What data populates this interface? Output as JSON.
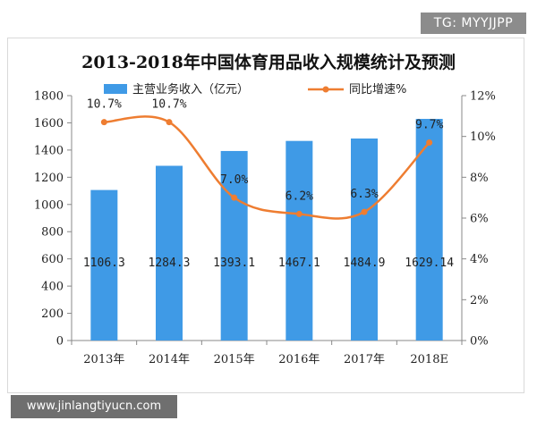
{
  "badge": {
    "text": "TG: MYYJJPP"
  },
  "footer": {
    "url": "www.jinlangtiyucn.com"
  },
  "colors": {
    "bar": "#3f9ae6",
    "line": "#ee7d31",
    "axis": "#888888"
  },
  "chart_data": {
    "type": "bar",
    "title": "2013-2018年中国体育用品收入规模统计及预测",
    "categories": [
      "2013年",
      "2014年",
      "2015年",
      "2016年",
      "2017年",
      "2018E"
    ],
    "series": [
      {
        "name": "主营业务收入（亿元）",
        "type": "bar",
        "axis": "left",
        "values": [
          1106.3,
          1284.3,
          1393.1,
          1467.1,
          1484.9,
          1629.14
        ],
        "labels": [
          "1106.3",
          "1284.3",
          "1393.1",
          "1467.1",
          "1484.9",
          "1629.14"
        ]
      },
      {
        "name": "同比增速%",
        "type": "line",
        "axis": "right",
        "values": [
          10.7,
          10.7,
          7.0,
          6.2,
          6.3,
          9.7
        ],
        "labels": [
          "10.7%",
          "10.7%",
          "7.0%",
          "6.2%",
          "6.3%",
          "9.7%"
        ]
      }
    ],
    "y_left": {
      "min": 0,
      "max": 1800,
      "ticks": [
        "0",
        "200",
        "400",
        "600",
        "800",
        "1000",
        "1200",
        "1400",
        "1600",
        "1800"
      ]
    },
    "y_right": {
      "min": 0,
      "max": 12,
      "ticks": [
        "0%",
        "2%",
        "4%",
        "6%",
        "8%",
        "10%",
        "12%"
      ]
    },
    "legend_position": "top",
    "grid": false
  }
}
